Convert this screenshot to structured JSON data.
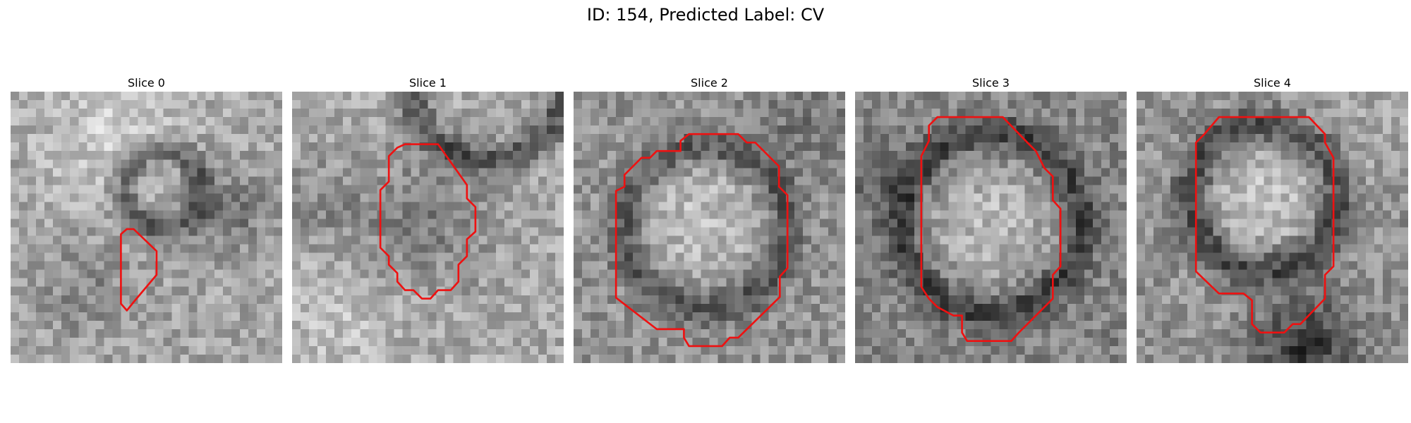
{
  "figure": {
    "title": "ID: 154, Predicted Label: CV"
  },
  "colors": {
    "contour": "#ee1111",
    "background": "#ffffff"
  },
  "grid": {
    "rows": 32,
    "cols": 32
  },
  "slices": [
    {
      "label": "Slice 0",
      "contour": [
        [
          13.7,
          16.2
        ],
        [
          14.5,
          16.2
        ],
        [
          17.2,
          18.8
        ],
        [
          17.2,
          21.6
        ],
        [
          14.5,
          24.8
        ],
        [
          13.7,
          25.8
        ],
        [
          13.0,
          25.0
        ],
        [
          13.0,
          16.8
        ]
      ]
    },
    {
      "label": "Slice 1",
      "contour": [
        [
          13.3,
          6.2
        ],
        [
          17.2,
          6.2
        ],
        [
          20.6,
          11.0
        ],
        [
          20.6,
          12.6
        ],
        [
          21.6,
          13.6
        ],
        [
          21.6,
          16.5
        ],
        [
          20.6,
          17.4
        ],
        [
          20.6,
          19.4
        ],
        [
          19.6,
          20.4
        ],
        [
          19.6,
          22.4
        ],
        [
          18.7,
          23.4
        ],
        [
          17.2,
          23.4
        ],
        [
          16.3,
          24.4
        ],
        [
          15.3,
          24.4
        ],
        [
          14.3,
          23.4
        ],
        [
          13.3,
          23.4
        ],
        [
          12.4,
          22.4
        ],
        [
          12.4,
          21.4
        ],
        [
          11.4,
          20.4
        ],
        [
          11.4,
          19.4
        ],
        [
          10.4,
          18.4
        ],
        [
          10.4,
          11.6
        ],
        [
          11.4,
          10.6
        ],
        [
          11.4,
          7.6
        ],
        [
          12.4,
          6.6
        ]
      ]
    },
    {
      "label": "Slice 2",
      "contour": [
        [
          13.6,
          5.0
        ],
        [
          19.4,
          5.0
        ],
        [
          20.4,
          6.0
        ],
        [
          21.4,
          6.0
        ],
        [
          24.2,
          8.8
        ],
        [
          24.2,
          11.2
        ],
        [
          25.2,
          12.2
        ],
        [
          25.2,
          20.8
        ],
        [
          24.3,
          21.8
        ],
        [
          24.3,
          24.2
        ],
        [
          19.4,
          29.0
        ],
        [
          18.4,
          29.0
        ],
        [
          17.5,
          30.0
        ],
        [
          13.6,
          30.0
        ],
        [
          13.0,
          29.0
        ],
        [
          13.0,
          28.0
        ],
        [
          9.8,
          28.0
        ],
        [
          5.0,
          24.3
        ],
        [
          5.0,
          11.7
        ],
        [
          6.0,
          11.2
        ],
        [
          6.0,
          9.8
        ],
        [
          8.0,
          7.8
        ],
        [
          9.0,
          7.8
        ],
        [
          9.8,
          7.0
        ],
        [
          12.6,
          7.0
        ],
        [
          12.6,
          5.8
        ]
      ]
    },
    {
      "label": "Slice 3",
      "contour": [
        [
          9.7,
          3.0
        ],
        [
          17.4,
          3.0
        ],
        [
          20.3,
          6.0
        ],
        [
          21.3,
          7.0
        ],
        [
          22.3,
          9.0
        ],
        [
          23.3,
          10.0
        ],
        [
          23.3,
          12.8
        ],
        [
          24.2,
          13.8
        ],
        [
          24.2,
          20.6
        ],
        [
          23.3,
          21.6
        ],
        [
          23.3,
          24.4
        ],
        [
          20.3,
          27.4
        ],
        [
          19.3,
          28.4
        ],
        [
          18.4,
          29.4
        ],
        [
          13.2,
          29.4
        ],
        [
          12.6,
          28.4
        ],
        [
          12.6,
          26.4
        ],
        [
          11.6,
          26.4
        ],
        [
          9.7,
          25.4
        ],
        [
          8.7,
          24.4
        ],
        [
          7.8,
          23.0
        ],
        [
          7.8,
          21.0
        ],
        [
          7.8,
          7.6
        ],
        [
          8.7,
          5.8
        ],
        [
          8.7,
          4.0
        ]
      ]
    },
    {
      "label": "Slice 4",
      "contour": [
        [
          9.7,
          3.0
        ],
        [
          20.3,
          3.0
        ],
        [
          22.2,
          5.0
        ],
        [
          22.2,
          6.0
        ],
        [
          23.2,
          7.8
        ],
        [
          23.2,
          20.6
        ],
        [
          22.2,
          21.6
        ],
        [
          22.2,
          24.4
        ],
        [
          19.3,
          27.4
        ],
        [
          18.4,
          27.4
        ],
        [
          17.4,
          28.4
        ],
        [
          14.6,
          28.4
        ],
        [
          13.6,
          27.4
        ],
        [
          13.6,
          24.6
        ],
        [
          12.6,
          23.8
        ],
        [
          9.7,
          23.8
        ],
        [
          7.0,
          21.2
        ],
        [
          7.0,
          6.0
        ],
        [
          8.0,
          5.0
        ]
      ]
    }
  ]
}
